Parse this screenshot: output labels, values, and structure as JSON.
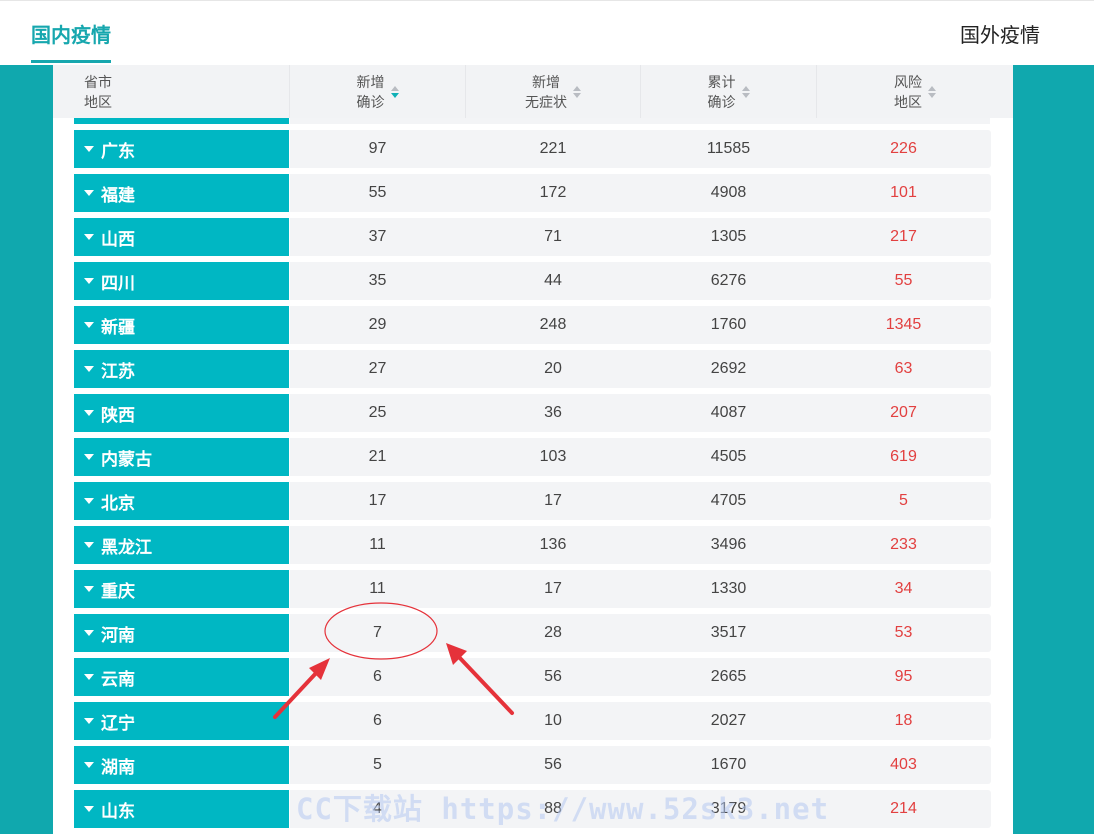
{
  "tabs": {
    "domestic": "国内疫情",
    "foreign": "国外疫情"
  },
  "colors": {
    "accent": "#17a7ae",
    "band": "#10a8ae",
    "name_cell": "#00b7c3",
    "risk_text": "#e24040",
    "annotation": "#e5323a"
  },
  "table": {
    "headers": [
      {
        "line1": "省市",
        "line2": "地区",
        "sortable": false
      },
      {
        "line1": "新增",
        "line2": "确诊",
        "sortable": true,
        "sort_active": "desc"
      },
      {
        "line1": "新增",
        "line2": "无症状",
        "sortable": true
      },
      {
        "line1": "累计",
        "line2": "确诊",
        "sortable": true
      },
      {
        "line1": "风险",
        "line2": "地区",
        "sortable": true
      }
    ],
    "rows": [
      {
        "region": "广东",
        "new_confirmed": "97",
        "new_asymptomatic": "221",
        "total_confirmed": "11585",
        "risk_areas": "226"
      },
      {
        "region": "福建",
        "new_confirmed": "55",
        "new_asymptomatic": "172",
        "total_confirmed": "4908",
        "risk_areas": "101"
      },
      {
        "region": "山西",
        "new_confirmed": "37",
        "new_asymptomatic": "71",
        "total_confirmed": "1305",
        "risk_areas": "217"
      },
      {
        "region": "四川",
        "new_confirmed": "35",
        "new_asymptomatic": "44",
        "total_confirmed": "6276",
        "risk_areas": "55"
      },
      {
        "region": "新疆",
        "new_confirmed": "29",
        "new_asymptomatic": "248",
        "total_confirmed": "1760",
        "risk_areas": "1345"
      },
      {
        "region": "江苏",
        "new_confirmed": "27",
        "new_asymptomatic": "20",
        "total_confirmed": "2692",
        "risk_areas": "63"
      },
      {
        "region": "陕西",
        "new_confirmed": "25",
        "new_asymptomatic": "36",
        "total_confirmed": "4087",
        "risk_areas": "207"
      },
      {
        "region": "内蒙古",
        "new_confirmed": "21",
        "new_asymptomatic": "103",
        "total_confirmed": "4505",
        "risk_areas": "619"
      },
      {
        "region": "北京",
        "new_confirmed": "17",
        "new_asymptomatic": "17",
        "total_confirmed": "4705",
        "risk_areas": "5"
      },
      {
        "region": "黑龙江",
        "new_confirmed": "11",
        "new_asymptomatic": "136",
        "total_confirmed": "3496",
        "risk_areas": "233"
      },
      {
        "region": "重庆",
        "new_confirmed": "11",
        "new_asymptomatic": "17",
        "total_confirmed": "1330",
        "risk_areas": "34"
      },
      {
        "region": "河南",
        "new_confirmed": "7",
        "new_asymptomatic": "28",
        "total_confirmed": "3517",
        "risk_areas": "53"
      },
      {
        "region": "云南",
        "new_confirmed": "6",
        "new_asymptomatic": "56",
        "total_confirmed": "2665",
        "risk_areas": "95"
      },
      {
        "region": "辽宁",
        "new_confirmed": "6",
        "new_asymptomatic": "10",
        "total_confirmed": "2027",
        "risk_areas": "18"
      },
      {
        "region": "湖南",
        "new_confirmed": "5",
        "new_asymptomatic": "56",
        "total_confirmed": "1670",
        "risk_areas": "403"
      },
      {
        "region": "山东",
        "new_confirmed": "4",
        "new_asymptomatic": "88",
        "total_confirmed": "3179",
        "risk_areas": "214"
      }
    ]
  },
  "watermark": "CC下载站 https://www.52sk3.net"
}
